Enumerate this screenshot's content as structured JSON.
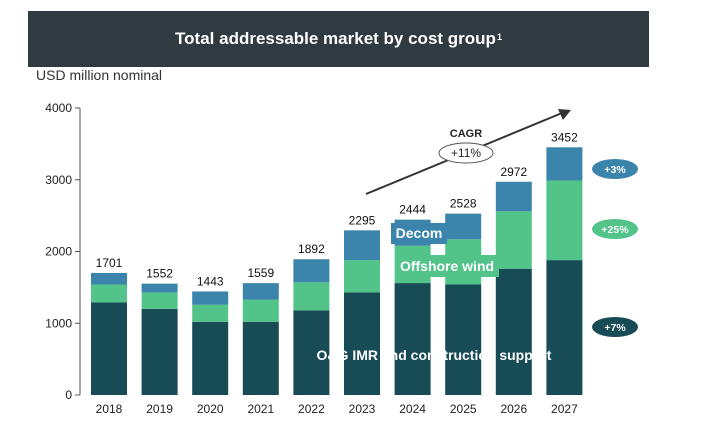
{
  "header": {
    "title": "Total addressable market by cost group",
    "footnote": "1"
  },
  "chart_data": {
    "type": "bar",
    "stacked": true,
    "ylabel": "USD million nominal",
    "ylim": [
      0,
      4000
    ],
    "yticks": [
      "0",
      "1000",
      "2000",
      "3000",
      "4000"
    ],
    "categories": [
      "2018",
      "2019",
      "2020",
      "2021",
      "2022",
      "2023",
      "2024",
      "2025",
      "2026",
      "2027"
    ],
    "totals": [
      1701,
      1552,
      1443,
      1559,
      1892,
      2295,
      2444,
      2528,
      2972,
      3452
    ],
    "series": [
      {
        "name": "O&G IMR and construction support",
        "color": "#174b56",
        "values": [
          1290,
          1200,
          1020,
          1020,
          1180,
          1430,
          1560,
          1540,
          1760,
          1880
        ]
      },
      {
        "name": "Offshore wind",
        "color": "#52c48a",
        "values": [
          250,
          230,
          240,
          310,
          390,
          450,
          520,
          630,
          800,
          1110
        ]
      },
      {
        "name": "Decom",
        "color": "#3b84ab",
        "values": [
          161,
          122,
          183,
          229,
          322,
          415,
          364,
          358,
          412,
          462
        ]
      }
    ],
    "cagr": {
      "label": "CAGR",
      "value": "+11%"
    },
    "badges": [
      {
        "text": "+3%",
        "color": "#3b84ab"
      },
      {
        "text": "+25%",
        "color": "#52c48a"
      },
      {
        "text": "+7%",
        "color": "#174b56"
      }
    ]
  }
}
